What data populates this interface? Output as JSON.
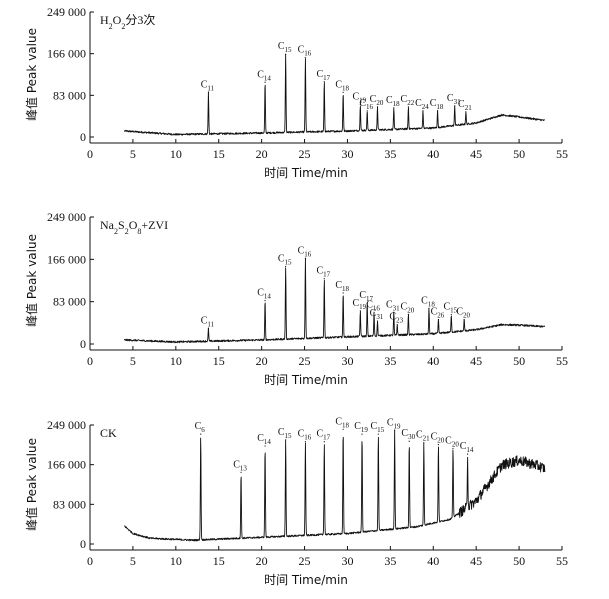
{
  "chart_data": [
    {
      "type": "line",
      "title": "H₂O₂分3次",
      "title_parts": [
        "H",
        "2",
        "O",
        "2",
        "分3次"
      ],
      "xlabel": "时间 Time/min",
      "ylabel": "峰值 Peak value",
      "xlim": [
        0,
        55
      ],
      "ylim": [
        0,
        249000
      ],
      "xticks": [
        0,
        5,
        10,
        15,
        20,
        25,
        30,
        35,
        40,
        45,
        50,
        55
      ],
      "yticks": [
        0,
        83000,
        166000,
        249000
      ],
      "ytick_labels": [
        "0",
        "83 000",
        "166 000",
        "249 000"
      ],
      "baseline": [
        [
          4,
          12000
        ],
        [
          10,
          5000
        ],
        [
          20,
          8000
        ],
        [
          30,
          12000
        ],
        [
          40,
          18000
        ],
        [
          45,
          28000
        ],
        [
          48,
          44000
        ],
        [
          50,
          40000
        ],
        [
          53,
          33000
        ]
      ],
      "peaks": [
        {
          "x": 13.8,
          "y": 89000,
          "label": "C11"
        },
        {
          "x": 20.4,
          "y": 109000,
          "label": "C14"
        },
        {
          "x": 22.8,
          "y": 165000,
          "label": "C15"
        },
        {
          "x": 25.1,
          "y": 158000,
          "label": "C16"
        },
        {
          "x": 27.3,
          "y": 110000,
          "label": "C17"
        },
        {
          "x": 29.5,
          "y": 89000,
          "label": "C18"
        },
        {
          "x": 31.5,
          "y": 65000,
          "label": "C19"
        },
        {
          "x": 32.3,
          "y": 52000,
          "label": "C16"
        },
        {
          "x": 33.5,
          "y": 60000,
          "label": "C20"
        },
        {
          "x": 35.4,
          "y": 58000,
          "label": "C18"
        },
        {
          "x": 37.1,
          "y": 60000,
          "label": "C22"
        },
        {
          "x": 38.8,
          "y": 52000,
          "label": "C24"
        },
        {
          "x": 40.5,
          "y": 52000,
          "label": "C18"
        },
        {
          "x": 42.5,
          "y": 62000,
          "label": "C31"
        },
        {
          "x": 43.8,
          "y": 50000,
          "label": "C21"
        }
      ]
    },
    {
      "type": "line",
      "title": "Na₂S₂O₈+ZVI",
      "title_parts": [
        "Na",
        "2",
        "S",
        "2",
        "O",
        "8",
        "+ZVI"
      ],
      "xlabel": "时间 Time/min",
      "ylabel": "峰值 Peak value",
      "xlim": [
        0,
        55
      ],
      "ylim": [
        0,
        249000
      ],
      "xticks": [
        0,
        5,
        10,
        15,
        20,
        25,
        30,
        35,
        40,
        45,
        50,
        55
      ],
      "yticks": [
        0,
        83000,
        166000,
        249000
      ],
      "ytick_labels": [
        "0",
        "83 000",
        "166 000",
        "249 000"
      ],
      "baseline": [
        [
          4,
          8000
        ],
        [
          10,
          4000
        ],
        [
          20,
          8000
        ],
        [
          30,
          14000
        ],
        [
          40,
          20000
        ],
        [
          45,
          28000
        ],
        [
          48,
          38000
        ],
        [
          50,
          37000
        ],
        [
          53,
          34000
        ]
      ],
      "peaks": [
        {
          "x": 13.8,
          "y": 30000,
          "label": "C11"
        },
        {
          "x": 20.4,
          "y": 85000,
          "label": "C14"
        },
        {
          "x": 22.8,
          "y": 152000,
          "label": "C15"
        },
        {
          "x": 25.1,
          "y": 168000,
          "label": "C16"
        },
        {
          "x": 27.3,
          "y": 128000,
          "label": "C17"
        },
        {
          "x": 29.5,
          "y": 100000,
          "label": "C18"
        },
        {
          "x": 31.5,
          "y": 65000,
          "label": "C19"
        },
        {
          "x": 32.3,
          "y": 80000,
          "label": "C17"
        },
        {
          "x": 33.1,
          "y": 62000,
          "label": "C16"
        },
        {
          "x": 33.5,
          "y": 45000,
          "label": "C31"
        },
        {
          "x": 35.4,
          "y": 62000,
          "label": "C31"
        },
        {
          "x": 35.8,
          "y": 38000,
          "label": "C23"
        },
        {
          "x": 37.1,
          "y": 58000,
          "label": "C20"
        },
        {
          "x": 39.5,
          "y": 70000,
          "label": "C18"
        },
        {
          "x": 40.6,
          "y": 48000,
          "label": "C26"
        },
        {
          "x": 42.1,
          "y": 58000,
          "label": "C15"
        },
        {
          "x": 43.6,
          "y": 48000,
          "label": "C20"
        }
      ]
    },
    {
      "type": "line",
      "title": "CK",
      "title_parts": [
        "CK"
      ],
      "xlabel": "时间 Time/min",
      "ylabel": "峰值 Peak value",
      "xlim": [
        0,
        55
      ],
      "ylim": [
        0,
        249000
      ],
      "xticks": [
        0,
        5,
        10,
        15,
        20,
        25,
        30,
        35,
        40,
        45,
        50,
        55
      ],
      "yticks": [
        0,
        83000,
        166000,
        249000
      ],
      "ytick_labels": [
        "0",
        "83 000",
        "166 000",
        "249 000"
      ],
      "baseline": [
        [
          4,
          38000
        ],
        [
          5,
          22000
        ],
        [
          7,
          12000
        ],
        [
          12,
          8000
        ],
        [
          20,
          14000
        ],
        [
          30,
          22000
        ],
        [
          38,
          36000
        ],
        [
          42,
          52000
        ],
        [
          45,
          90000
        ],
        [
          48,
          165000
        ],
        [
          50,
          175000
        ],
        [
          52,
          165000
        ],
        [
          53,
          158000
        ]
      ],
      "peaks": [
        {
          "x": 12.9,
          "y": 230000,
          "label": "C6"
        },
        {
          "x": 17.6,
          "y": 150000,
          "label": "C13"
        },
        {
          "x": 20.4,
          "y": 205000,
          "label": "C14"
        },
        {
          "x": 22.8,
          "y": 218000,
          "label": "C15"
        },
        {
          "x": 25.1,
          "y": 214000,
          "label": "C16"
        },
        {
          "x": 27.3,
          "y": 214000,
          "label": "C17"
        },
        {
          "x": 29.5,
          "y": 240000,
          "label": "C18"
        },
        {
          "x": 31.7,
          "y": 230000,
          "label": "C19"
        },
        {
          "x": 33.6,
          "y": 230000,
          "label": "C15"
        },
        {
          "x": 35.5,
          "y": 238000,
          "label": "C19"
        },
        {
          "x": 37.2,
          "y": 215000,
          "label": "C30"
        },
        {
          "x": 38.9,
          "y": 212000,
          "label": "C21"
        },
        {
          "x": 40.6,
          "y": 208000,
          "label": "C20"
        },
        {
          "x": 42.3,
          "y": 200000,
          "label": "C20"
        },
        {
          "x": 44.0,
          "y": 188000,
          "label": "C14"
        }
      ]
    }
  ]
}
